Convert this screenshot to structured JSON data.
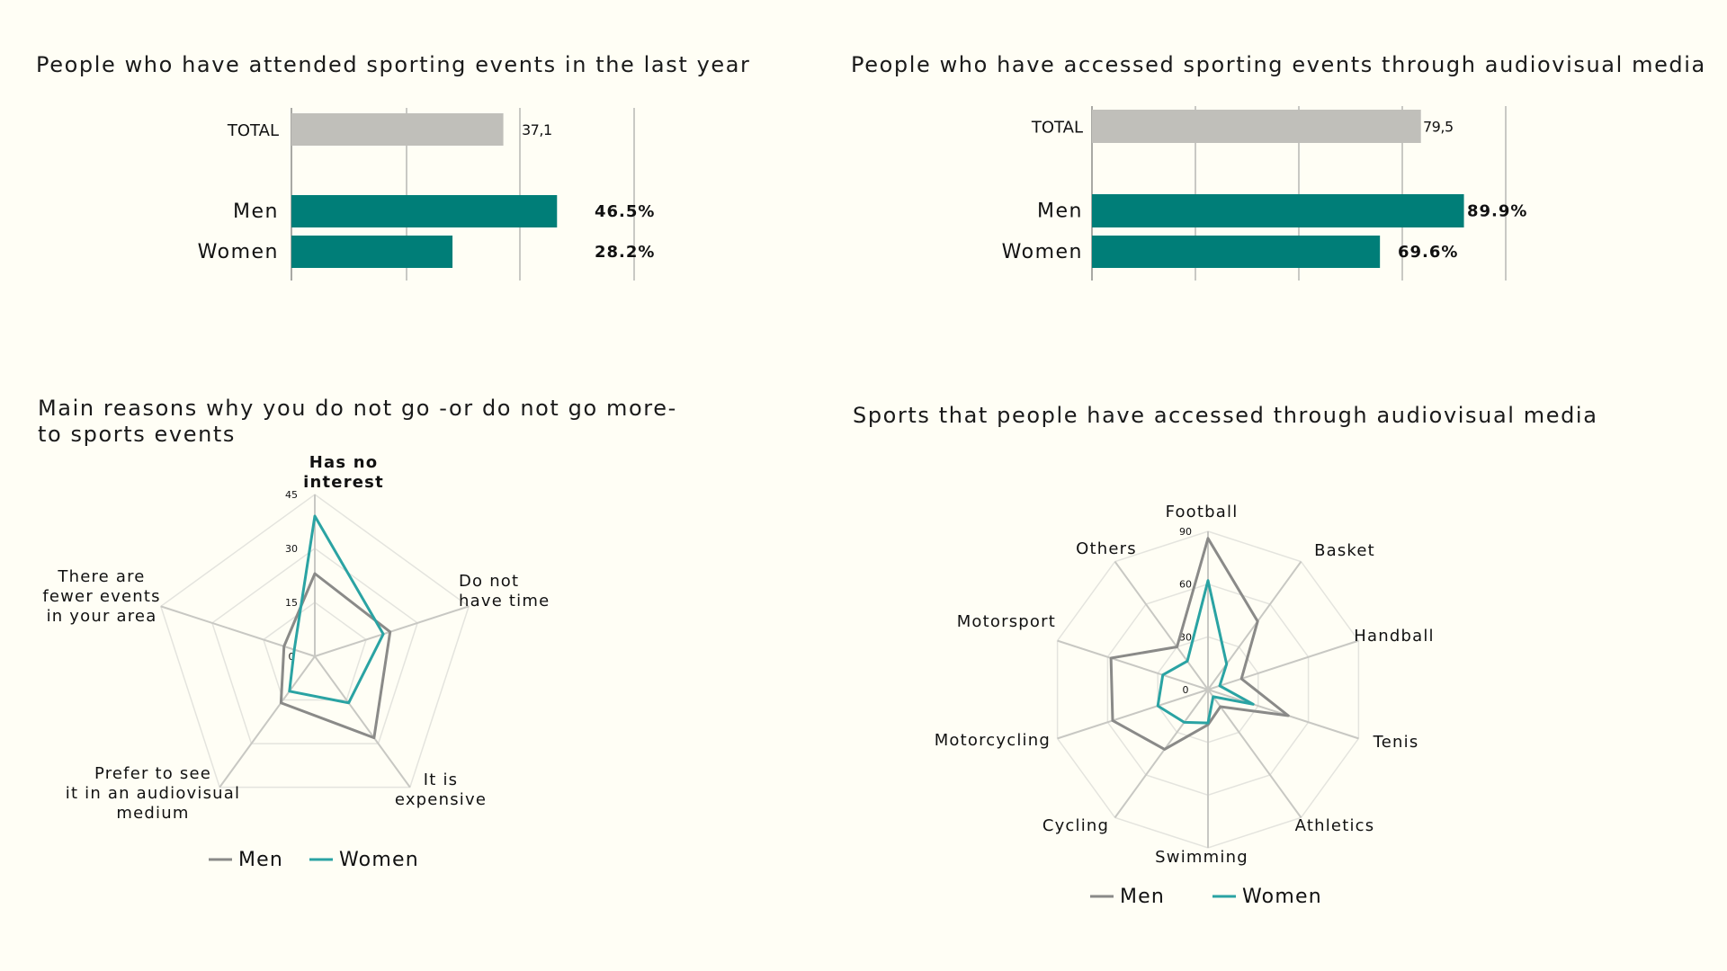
{
  "colors": {
    "men": "#8a8a88",
    "women": "#2aa3a3",
    "bar_teal": "#007e78",
    "bar_total": "#c0bfba",
    "value_grey": "#8d939b"
  },
  "chart_data": [
    {
      "type": "bar",
      "orientation": "horizontal",
      "title": "People who have attended sporting events in the last year",
      "categories": [
        "TOTAL",
        "Men",
        "Women"
      ],
      "values": [
        37.1,
        46.5,
        28.2
      ],
      "value_labels": [
        "37,1",
        "46.5%",
        "28.2%"
      ],
      "xlim": [
        0,
        60
      ],
      "grid": true
    },
    {
      "type": "bar",
      "orientation": "horizontal",
      "title": "People who have accessed sporting events through audiovisual media",
      "categories": [
        "TOTAL",
        "Men",
        "Women"
      ],
      "values": [
        79.5,
        89.9,
        69.6
      ],
      "value_labels": [
        "79,5",
        "89.9%",
        "69.6%"
      ],
      "xlim": [
        0,
        100
      ],
      "grid": true
    },
    {
      "type": "radar",
      "title_lines": [
        "Main reasons why you do not go  -or do not go more-",
        "to sports events"
      ],
      "axes": [
        {
          "lines": [
            "Has no",
            "interest"
          ],
          "bold": true
        },
        {
          "lines": [
            "Do not",
            "have time"
          ],
          "bold": false
        },
        {
          "lines": [
            "It is",
            "expensive"
          ],
          "bold": false
        },
        {
          "lines": [
            "Prefer to see",
            "it in an audiovisual",
            "medium"
          ],
          "bold": false
        },
        {
          "lines": [
            "There are",
            "fewer events",
            "in your area"
          ],
          "bold": false
        }
      ],
      "max": 45,
      "ticks": [
        "45",
        "30",
        "15",
        "0"
      ],
      "tick_values": [
        45,
        30,
        15,
        0
      ],
      "series": [
        {
          "name": "Men",
          "values": [
            23,
            22,
            28,
            16,
            9
          ]
        },
        {
          "name": "Women",
          "values": [
            39,
            20,
            16,
            12,
            6
          ]
        }
      ],
      "legend": [
        "Men",
        "Women"
      ],
      "legend_position": "bottom"
    },
    {
      "type": "radar",
      "title_lines": [
        "Sports that people have accessed through audiovisual media"
      ],
      "axes": [
        {
          "lines": [
            "Football"
          ],
          "bold": false
        },
        {
          "lines": [
            "Basket"
          ],
          "bold": false
        },
        {
          "lines": [
            "Handball"
          ],
          "bold": false
        },
        {
          "lines": [
            "Tenis"
          ],
          "bold": false
        },
        {
          "lines": [
            "Athletics"
          ],
          "bold": false
        },
        {
          "lines": [
            "Swimming"
          ],
          "bold": false
        },
        {
          "lines": [
            "Cycling"
          ],
          "bold": false
        },
        {
          "lines": [
            "Motorcycling"
          ],
          "bold": false
        },
        {
          "lines": [
            "Motorsport"
          ],
          "bold": false
        },
        {
          "lines": [
            "Others"
          ],
          "bold": false
        }
      ],
      "max": 90,
      "ticks": [
        "90",
        "60",
        "30",
        "0"
      ],
      "tick_values": [
        90,
        60,
        30,
        0
      ],
      "series": [
        {
          "name": "Men",
          "values": [
            86,
            48,
            20,
            48,
            12,
            20,
            42,
            57,
            58,
            30
          ]
        },
        {
          "name": "Women",
          "values": [
            62,
            18,
            7,
            27,
            5,
            19,
            23,
            30,
            27,
            20
          ]
        }
      ],
      "legend": [
        "Men",
        "Women"
      ],
      "legend_position": "bottom"
    }
  ]
}
